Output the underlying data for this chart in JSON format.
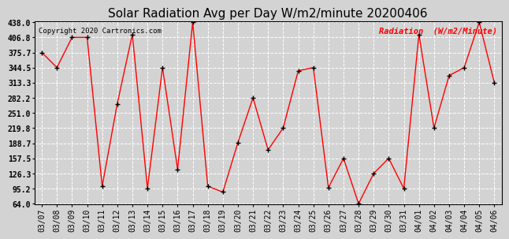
{
  "title": "Solar Radiation Avg per Day W/m2/minute 20200406",
  "copyright": "Copyright 2020 Cartronics.com",
  "legend_label": "Radiation  (W/m2/Minute)",
  "dates": [
    "03/07",
    "03/08",
    "03/09",
    "03/10",
    "03/11",
    "03/12",
    "03/13",
    "03/14",
    "03/15",
    "03/16",
    "03/17",
    "03/18",
    "03/19",
    "03/20",
    "03/21",
    "03/22",
    "03/23",
    "03/24",
    "03/25",
    "03/26",
    "03/27",
    "03/28",
    "03/29",
    "03/30",
    "03/31",
    "04/01",
    "04/02",
    "04/03",
    "04/04",
    "04/05",
    "04/06"
  ],
  "values": [
    375.7,
    344.5,
    406.8,
    406.8,
    100.0,
    270.0,
    413.0,
    95.2,
    344.5,
    135.0,
    438.0,
    100.0,
    88.0,
    190.0,
    282.2,
    175.0,
    220.0,
    338.0,
    344.5,
    97.0,
    157.5,
    64.0,
    126.3,
    157.5,
    95.2,
    413.0,
    220.0,
    328.0,
    344.5,
    438.0,
    313.3
  ],
  "ymin": 64.0,
  "ymax": 438.0,
  "yticks": [
    64.0,
    95.2,
    126.3,
    157.5,
    188.7,
    219.8,
    251.0,
    282.2,
    313.3,
    344.5,
    375.7,
    406.8,
    438.0
  ],
  "line_color": "red",
  "marker_color": "black",
  "background_color": "#d3d3d3",
  "plot_bg_color": "#d3d3d3",
  "grid_color": "white",
  "title_fontsize": 11,
  "tick_fontsize": 7,
  "legend_color": "red"
}
